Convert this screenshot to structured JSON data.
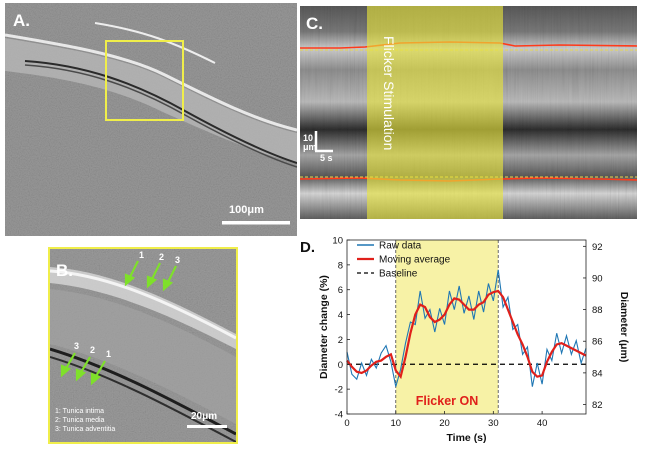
{
  "panelA": {
    "label": "A.",
    "scalebar": "100μm"
  },
  "panelB": {
    "label": "B.",
    "arrow_top_numbers": [
      "1",
      "2",
      "3"
    ],
    "arrow_bottom_numbers": [
      "3",
      "2",
      "1"
    ],
    "legend": [
      "1: Tunica intima",
      "2: Tunica media",
      "3: Tunica adventitia"
    ],
    "scalebar": "20μm"
  },
  "panelC": {
    "label": "C.",
    "stimulation_text": "Flicker Stimulation",
    "scale_vertical": "10 μm",
    "scale_horizontal": "5 s"
  },
  "colors": {
    "raw": "#1f77b4",
    "moving": "#e0201b",
    "highlight": "#f7f2a6",
    "yellow_box": "#f0ee4a"
  },
  "chart_data": {
    "type": "line",
    "label": "D.",
    "xlabel": "Time (s)",
    "ylabel": "Diameter change (%)",
    "y2label": "Diameter (μm)",
    "xlim": [
      0,
      49
    ],
    "ylim": [
      -4,
      10
    ],
    "y2lim": [
      81.4,
      92.4
    ],
    "xticks": [
      0,
      10,
      20,
      30,
      40
    ],
    "yticks": [
      -4,
      -2,
      0,
      2,
      4,
      6,
      8,
      10
    ],
    "y2ticks": [
      82,
      84,
      86,
      88,
      90,
      92
    ],
    "annotation": "Flicker ON",
    "flicker_on_range": [
      10,
      31
    ],
    "legend": [
      "Raw data",
      "Moving average",
      "Baseline"
    ],
    "baseline": 0,
    "moving_average": {
      "x": [
        0,
        1,
        2,
        3,
        4,
        5,
        6,
        7,
        8,
        9,
        10,
        11,
        12,
        13,
        14,
        15,
        16,
        17,
        18,
        19,
        20,
        21,
        22,
        23,
        24,
        25,
        26,
        27,
        28,
        29,
        30,
        31,
        32,
        33,
        34,
        35,
        36,
        37,
        38,
        39,
        40,
        41,
        42,
        43,
        44,
        45,
        46,
        47,
        48,
        49
      ],
      "y": [
        0.3,
        -0.2,
        -0.6,
        -0.7,
        -0.5,
        -0.1,
        0.2,
        0.3,
        0.6,
        0.8,
        -0.5,
        -1.0,
        0.6,
        2.5,
        4.0,
        4.8,
        4.6,
        3.8,
        3.4,
        3.6,
        4.0,
        4.8,
        5.3,
        5.2,
        4.8,
        4.4,
        4.4,
        4.8,
        5.0,
        5.6,
        5.8,
        5.9,
        5.4,
        4.4,
        3.4,
        2.4,
        1.6,
        0.6,
        -0.6,
        -1.0,
        -0.9,
        0.2,
        1.0,
        1.6,
        1.7,
        1.5,
        1.3,
        1.1,
        0.9,
        0.7
      ]
    },
    "raw": {
      "x": [
        0,
        1,
        2,
        3,
        4,
        5,
        6,
        7,
        8,
        9,
        10,
        11,
        12,
        13,
        14,
        15,
        16,
        17,
        18,
        19,
        20,
        21,
        22,
        23,
        24,
        25,
        26,
        27,
        28,
        29,
        30,
        31,
        32,
        33,
        34,
        35,
        36,
        37,
        38,
        39,
        40,
        41,
        42,
        43,
        44,
        45,
        46,
        47,
        48,
        49
      ],
      "y": [
        1.0,
        -0.8,
        -1.2,
        0.1,
        -0.9,
        0.4,
        -0.3,
        0.9,
        1.5,
        0.2,
        -1.8,
        -0.4,
        1.7,
        3.4,
        3.2,
        5.9,
        3.7,
        4.4,
        2.6,
        4.5,
        3.2,
        5.9,
        4.4,
        6.3,
        4.1,
        5.5,
        3.6,
        5.9,
        4.2,
        6.5,
        5.1,
        7.6,
        4.6,
        5.4,
        2.8,
        3.2,
        0.8,
        1.4,
        -1.8,
        0.1,
        -1.6,
        1.2,
        0.3,
        2.5,
        0.9,
        2.3,
        0.8,
        1.9,
        0.1,
        1.3
      ]
    }
  }
}
